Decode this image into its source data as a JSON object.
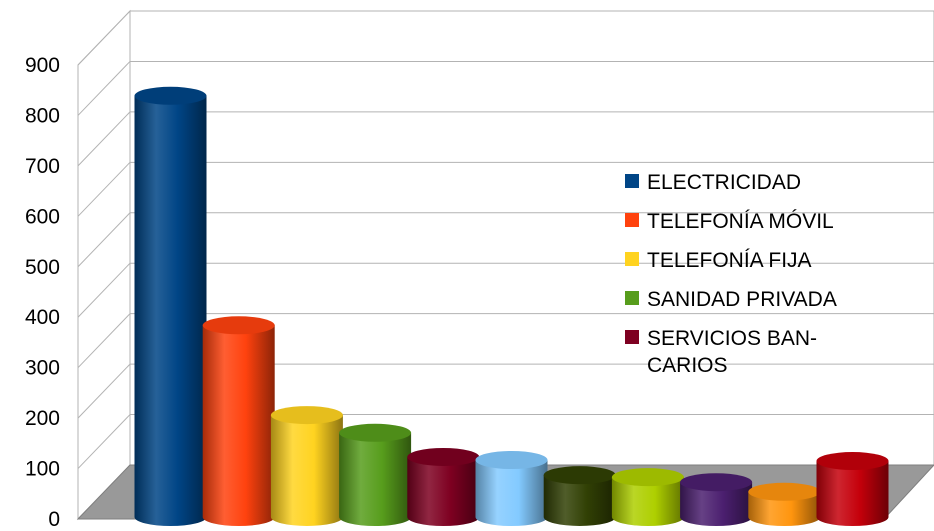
{
  "chart_data": {
    "type": "bar",
    "title": "",
    "xlabel": "",
    "ylabel": "",
    "ylim": [
      0,
      900
    ],
    "yticks": [
      "0",
      "100",
      "200",
      "300",
      "400",
      "500",
      "600",
      "700",
      "800",
      "900"
    ],
    "grid": true,
    "legend_position": "right",
    "style": "3d-cylinder",
    "bars": [
      {
        "value": 835,
        "color": "#004586"
      },
      {
        "value": 380,
        "color": "#ff420e"
      },
      {
        "value": 202,
        "color": "#ffd320"
      },
      {
        "value": 167,
        "color": "#579d1c"
      },
      {
        "value": 119,
        "color": "#7e0021"
      },
      {
        "value": 113,
        "color": "#83caff"
      },
      {
        "value": 83,
        "color": "#314004"
      },
      {
        "value": 79,
        "color": "#aecf00"
      },
      {
        "value": 69,
        "color": "#4b1f6f"
      },
      {
        "value": 50,
        "color": "#ff950e"
      },
      {
        "value": 111,
        "color": "#c5000b"
      }
    ],
    "legend": [
      {
        "label_lines": [
          "ELECTRICIDAD"
        ],
        "color": "#004586"
      },
      {
        "label_lines": [
          "TELEFONÍA MÓVIL"
        ],
        "color": "#ff420e"
      },
      {
        "label_lines": [
          "TELEFONÍA FIJA"
        ],
        "color": "#ffd320"
      },
      {
        "label_lines": [
          "SANIDAD PRIVADA"
        ],
        "color": "#579d1c"
      },
      {
        "label_lines": [
          "SERVICIOS BAN-",
          "CARIOS"
        ],
        "color": "#7e0021"
      }
    ]
  }
}
